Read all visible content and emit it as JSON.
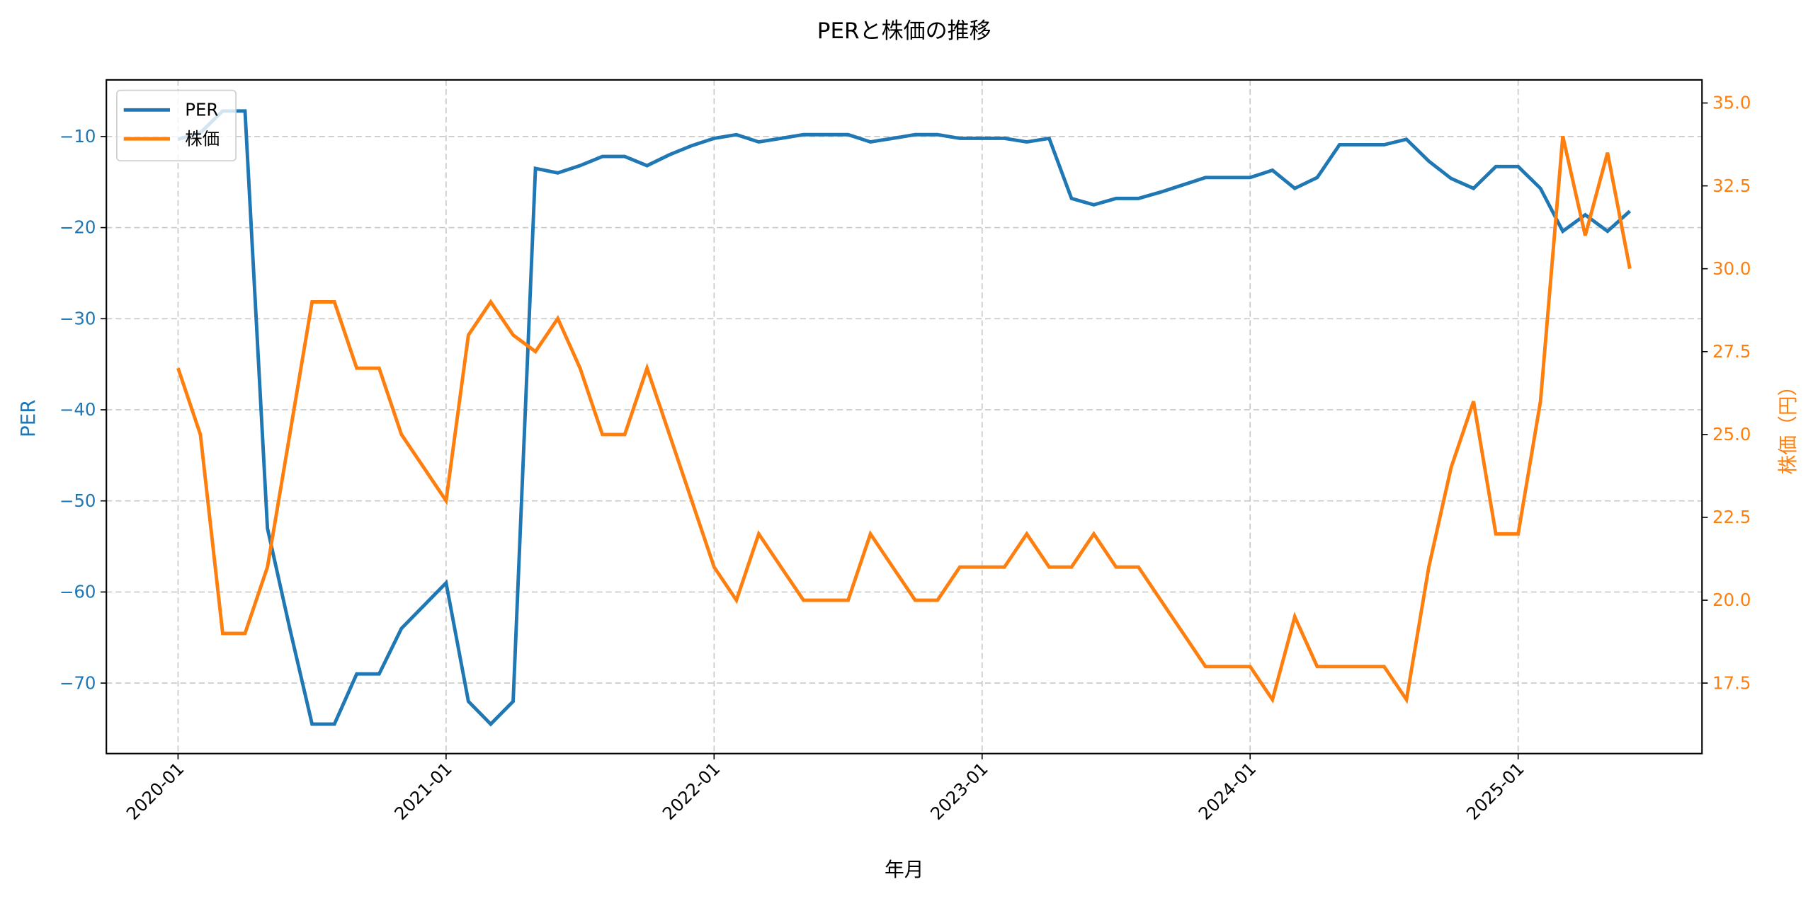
{
  "chart_data": {
    "type": "line",
    "title": "PERと株価の推移",
    "xlabel": "年月",
    "ylabel_left": "PER",
    "ylabel_right": "株価（円）",
    "grid": true,
    "legend_position": "upper left",
    "x_tick_labels": [
      "2020-01",
      "2021-01",
      "2022-01",
      "2023-01",
      "2024-01",
      "2025-01"
    ],
    "y_left_ticks": [
      -10,
      -20,
      -30,
      -40,
      -50,
      -60,
      -70
    ],
    "y_left_tick_labels": [
      "−10",
      "−20",
      "−30",
      "−40",
      "−50",
      "−60",
      "−70"
    ],
    "y_right_ticks": [
      35.0,
      32.5,
      30.0,
      27.5,
      25.0,
      22.5,
      20.0,
      17.5
    ],
    "y_right_tick_labels": [
      "35.0",
      "32.5",
      "30.0",
      "27.5",
      "25.0",
      "22.5",
      "20.0",
      "17.5"
    ],
    "ylim_left": [
      -78,
      -4
    ],
    "ylim_right": [
      16,
      35.6
    ],
    "x": [
      "2020-01",
      "2020-02",
      "2020-03",
      "2020-04",
      "2020-05",
      "2020-06",
      "2020-07",
      "2020-08",
      "2020-09",
      "2020-10",
      "2020-11",
      "2020-12",
      "2021-01",
      "2021-02",
      "2021-03",
      "2021-04",
      "2021-05",
      "2021-06",
      "2021-07",
      "2021-08",
      "2021-09",
      "2021-10",
      "2021-11",
      "2021-12",
      "2022-01",
      "2022-02",
      "2022-03",
      "2022-04",
      "2022-05",
      "2022-06",
      "2022-07",
      "2022-08",
      "2022-09",
      "2022-10",
      "2022-11",
      "2022-12",
      "2023-01",
      "2023-02",
      "2023-03",
      "2023-04",
      "2023-05",
      "2023-06",
      "2023-07",
      "2023-08",
      "2023-09",
      "2023-10",
      "2023-11",
      "2023-12",
      "2024-01",
      "2024-02",
      "2024-03",
      "2024-04",
      "2024-05",
      "2024-06",
      "2024-07",
      "2024-08",
      "2024-09",
      "2024-10",
      "2024-11",
      "2024-12",
      "2025-01",
      "2025-02",
      "2025-03",
      "2025-04",
      "2025-05",
      "2025-06"
    ],
    "series": [
      {
        "name": "PER",
        "axis": "left",
        "color": "#1f77b4",
        "values": [
          -10.3,
          -9.6,
          -7.2,
          -7.2,
          -53,
          -64,
          -74.5,
          -74.5,
          -69,
          -69,
          -64,
          -61.5,
          -59,
          -72,
          -74.5,
          -72,
          -13.5,
          -14,
          -13.2,
          -12.2,
          -12.2,
          -13.2,
          -12,
          -11,
          -10.2,
          -9.8,
          -10.6,
          -10.2,
          -9.8,
          -9.8,
          -9.8,
          -10.6,
          -10.2,
          -9.8,
          -9.8,
          -10.2,
          -10.2,
          -10.2,
          -10.6,
          -10.2,
          -16.8,
          -17.5,
          -16.8,
          -16.8,
          -16.1,
          -15.3,
          -14.5,
          -14.5,
          -14.5,
          -13.7,
          -15.7,
          -14.5,
          -10.9,
          -10.9,
          -10.9,
          -10.3,
          -12.7,
          -14.6,
          -15.7,
          -13.3,
          -13.3,
          -15.7,
          -20.4,
          -18.6,
          -20.4,
          -18.2
        ]
      },
      {
        "name": "株価",
        "axis": "right",
        "color": "#ff7f0e",
        "values": [
          27,
          25,
          19,
          19,
          21,
          25,
          29,
          29,
          27,
          27,
          25,
          24,
          23,
          28,
          29,
          28,
          27.5,
          28.5,
          27,
          25,
          25,
          27,
          25,
          23,
          21,
          20,
          22,
          21,
          20,
          20,
          20,
          22,
          21,
          20,
          20,
          21,
          21,
          21,
          22,
          21,
          21,
          22,
          21,
          21,
          20,
          19,
          18,
          18,
          18,
          17,
          19.5,
          18,
          18,
          18,
          18,
          17,
          21,
          24,
          26,
          22,
          22,
          26,
          34,
          31,
          33.5,
          30
        ]
      }
    ]
  },
  "legend": {
    "items": [
      {
        "label": "PER",
        "color": "#1f77b4"
      },
      {
        "label": "株価",
        "color": "#ff7f0e"
      }
    ]
  }
}
